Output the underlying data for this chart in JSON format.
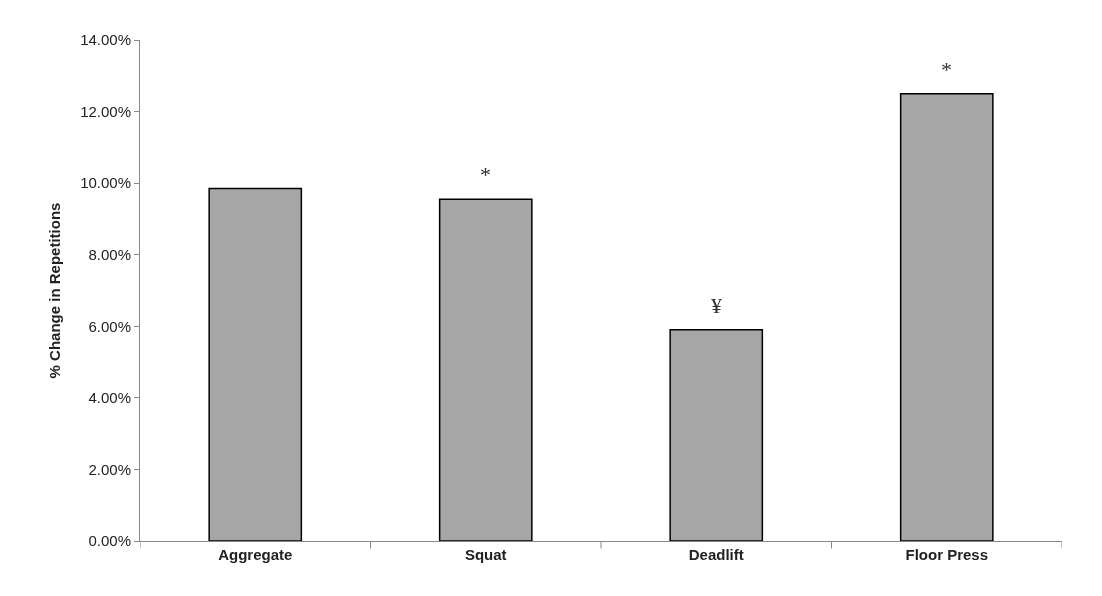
{
  "chart_data": {
    "type": "bar",
    "ylabel": "% Change in Repetitions",
    "categories": [
      "Aggregate",
      "Squat",
      "Deadlift",
      "Floor Press"
    ],
    "values": [
      9.85,
      9.55,
      5.9,
      12.5
    ],
    "color": "#a6a6a6",
    "ylim": [
      0,
      14
    ],
    "yticks": [
      {
        "value": 0,
        "label": "0.00%"
      },
      {
        "value": 2,
        "label": "2.00%"
      },
      {
        "value": 4,
        "label": "4.00%"
      },
      {
        "value": 6,
        "label": "6.00%"
      },
      {
        "value": 8,
        "label": "8.00%"
      },
      {
        "value": 10,
        "label": "10.00%"
      },
      {
        "value": 12,
        "label": "12.00%"
      },
      {
        "value": 14,
        "label": "14.00%"
      }
    ],
    "grid": false,
    "legend": false,
    "annotations": [
      {
        "text": "*",
        "x": "Squat",
        "y": 9.55
      },
      {
        "text": "¥",
        "x": "Deadlift",
        "y": 5.9
      },
      {
        "text": "*",
        "x": "Floor Press",
        "y": 12.5
      }
    ]
  }
}
